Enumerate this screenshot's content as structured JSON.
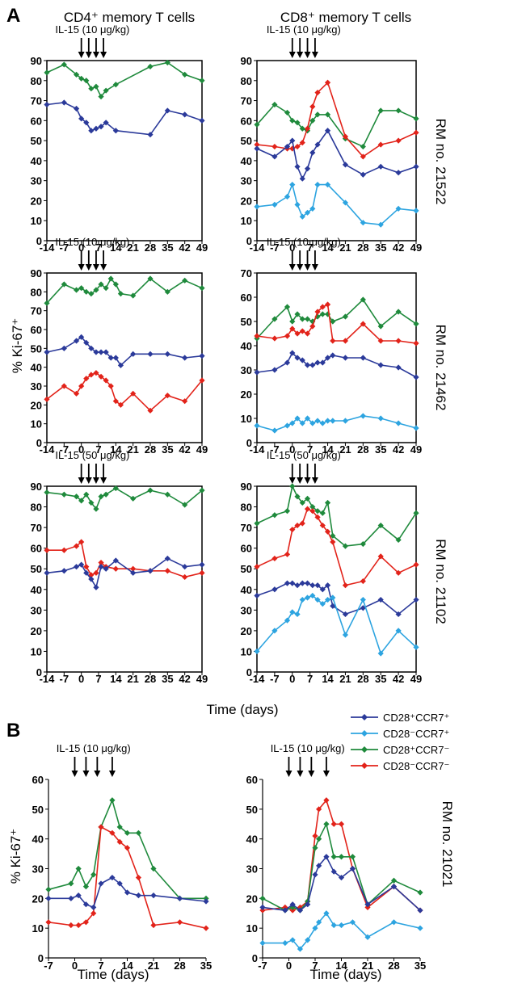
{
  "figure": {
    "panel_a_letter": "A",
    "panel_b_letter": "B",
    "col_cd4_title": "CD4⁺ memory T cells",
    "col_cd8_title": "CD8⁺ memory T cells",
    "ylabel": "% Ki-67⁺",
    "xlabel": "Time (days)",
    "rm_21522": "RM no. 21522",
    "rm_21462": "RM no. 21462",
    "rm_21102": "RM no. 21102",
    "rm_21021": "RM no. 21021"
  },
  "colors": {
    "CD28+CCR7+": "#2b3a9a",
    "CD28-CCR7+": "#2da4e0",
    "CD28+CCR7-": "#1f8a3c",
    "CD28-CCR7-": "#e2231a"
  },
  "legend": [
    {
      "key": "CD28+CCR7+",
      "label": "CD28⁺CCR7⁺"
    },
    {
      "key": "CD28-CCR7+",
      "label": "CD28⁻CCR7⁺"
    },
    {
      "key": "CD28+CCR7-",
      "label": "CD28⁺CCR7⁻"
    },
    {
      "key": "CD28-CCR7-",
      "label": "CD28⁻CCR7⁻"
    }
  ],
  "chart_data": [
    {
      "id": "a_cd4_21522",
      "type": "line",
      "treatment_label": "IL-15 (10 μg/kg)",
      "arrow_days": [
        0,
        3,
        6,
        9
      ],
      "ylim": [
        0,
        90
      ],
      "yticks": [
        0,
        10,
        20,
        30,
        40,
        50,
        60,
        70,
        80,
        90
      ],
      "xlim": [
        -14,
        49
      ],
      "xticks": [
        -14,
        -7,
        0,
        7,
        14,
        21,
        28,
        35,
        42,
        49
      ],
      "xtick_labels": [
        "-14",
        "-7",
        "0",
        "7",
        "14",
        "21",
        "28",
        "35",
        "42",
        "49"
      ],
      "x": [
        -14,
        -7,
        -2,
        0,
        2,
        4,
        6,
        8,
        10,
        14,
        28,
        35,
        42,
        49
      ],
      "series": [
        {
          "key": "CD28+CCR7-",
          "values": [
            84,
            88,
            83,
            81,
            80,
            76,
            77,
            72,
            75,
            78,
            87,
            89,
            83,
            80
          ]
        },
        {
          "key": "CD28+CCR7+",
          "values": [
            68,
            69,
            66,
            61,
            59,
            55,
            56,
            57,
            59,
            55,
            53,
            65,
            63,
            60
          ]
        }
      ]
    },
    {
      "id": "a_cd8_21522",
      "type": "line",
      "treatment_label": "IL-15 (10 μg/kg)",
      "arrow_days": [
        0,
        3,
        6,
        9
      ],
      "ylim": [
        0,
        90
      ],
      "yticks": [
        0,
        10,
        20,
        30,
        40,
        50,
        60,
        70,
        80,
        90
      ],
      "xlim": [
        -14,
        49
      ],
      "xticks": [
        -14,
        -7,
        0,
        7,
        14,
        21,
        28,
        35,
        42,
        49
      ],
      "xtick_labels": [
        "-14",
        "-7",
        "0",
        "7",
        "14",
        "21",
        "28",
        "35",
        "42",
        "49"
      ],
      "x": [
        -14,
        -7,
        -2,
        0,
        2,
        4,
        6,
        8,
        10,
        14,
        21,
        28,
        35,
        42,
        49
      ],
      "series": [
        {
          "key": "CD28+CCR7-",
          "values": [
            58,
            68,
            64,
            60,
            59,
            56,
            55,
            60,
            63,
            63,
            51,
            47,
            65,
            65,
            61
          ]
        },
        {
          "key": "CD28-CCR7-",
          "values": [
            48,
            47,
            46,
            46,
            47,
            49,
            56,
            67,
            74,
            79,
            52,
            42,
            48,
            50,
            54
          ]
        },
        {
          "key": "CD28+CCR7+",
          "values": [
            46,
            42,
            47,
            50,
            37,
            31,
            36,
            44,
            48,
            55,
            38,
            33,
            37,
            34,
            37
          ]
        },
        {
          "key": "CD28-CCR7+",
          "values": [
            17,
            18,
            22,
            28,
            18,
            12,
            14,
            16,
            28,
            28,
            19,
            9,
            8,
            16,
            15
          ]
        }
      ]
    },
    {
      "id": "a_cd4_21462",
      "type": "line",
      "treatment_label": "IL-15 (10 μg/kg)",
      "arrow_days": [
        0,
        3,
        6,
        9
      ],
      "ylim": [
        0,
        90
      ],
      "yticks": [
        0,
        10,
        20,
        30,
        40,
        50,
        60,
        70,
        80,
        90
      ],
      "xlim": [
        -14,
        49
      ],
      "xticks": [
        -14,
        -7,
        0,
        7,
        14,
        21,
        28,
        35,
        42,
        49
      ],
      "xtick_labels": [
        "-14",
        "-7",
        "0",
        "7",
        "14",
        "21",
        "28",
        "35",
        "42",
        "49"
      ],
      "x": [
        -14,
        -7,
        -2,
        0,
        2,
        4,
        6,
        8,
        10,
        12,
        14,
        16,
        21,
        28,
        35,
        42,
        49
      ],
      "series": [
        {
          "key": "CD28+CCR7-",
          "values": [
            74,
            84,
            81,
            82,
            80,
            79,
            81,
            84,
            82,
            87,
            84,
            79,
            78,
            87,
            80,
            86,
            82
          ]
        },
        {
          "key": "CD28+CCR7+",
          "values": [
            48,
            50,
            54,
            56,
            53,
            50,
            48,
            48,
            48,
            45,
            45,
            41,
            47,
            47,
            47,
            45,
            46
          ]
        },
        {
          "key": "CD28-CCR7-",
          "values": [
            23,
            30,
            26,
            30,
            34,
            36,
            37,
            35,
            33,
            30,
            22,
            20,
            26,
            17,
            25,
            22,
            33
          ]
        }
      ]
    },
    {
      "id": "a_cd8_21462",
      "type": "line",
      "treatment_label": "IL-15 (10 μg/kg)",
      "arrow_days": [
        0,
        3,
        6,
        9
      ],
      "ylim": [
        0,
        70
      ],
      "yticks": [
        0,
        10,
        20,
        30,
        40,
        50,
        60,
        70
      ],
      "xlim": [
        -14,
        49
      ],
      "xticks": [
        -14,
        -7,
        0,
        7,
        14,
        21,
        28,
        35,
        42,
        49
      ],
      "xtick_labels": [
        "-14",
        "-7",
        "0",
        "7",
        "14",
        "21",
        "28",
        "35",
        "42",
        "49"
      ],
      "x": [
        -14,
        -7,
        -2,
        0,
        2,
        4,
        6,
        8,
        10,
        12,
        14,
        16,
        21,
        28,
        35,
        42,
        49
      ],
      "series": [
        {
          "key": "CD28+CCR7-",
          "values": [
            43,
            51,
            56,
            50,
            53,
            51,
            51,
            50,
            52,
            53,
            53,
            50,
            52,
            59,
            48,
            54,
            49
          ]
        },
        {
          "key": "CD28-CCR7-",
          "values": [
            44,
            43,
            44,
            47,
            45,
            46,
            45,
            48,
            54,
            56,
            57,
            42,
            42,
            49,
            42,
            42,
            41
          ]
        },
        {
          "key": "CD28+CCR7+",
          "values": [
            29,
            30,
            33,
            37,
            35,
            34,
            32,
            32,
            33,
            33,
            35,
            36,
            35,
            35,
            32,
            31,
            27
          ]
        },
        {
          "key": "CD28-CCR7+",
          "values": [
            7,
            5,
            7,
            8,
            10,
            8,
            10,
            8,
            9,
            8,
            9,
            9,
            9,
            11,
            10,
            8,
            6
          ]
        }
      ]
    },
    {
      "id": "a_cd4_21102",
      "type": "line",
      "treatment_label": "IL-15 (50 μg/kg)",
      "arrow_days": [
        0,
        3,
        6,
        9
      ],
      "ylim": [
        0,
        90
      ],
      "yticks": [
        0,
        10,
        20,
        30,
        40,
        50,
        60,
        70,
        80,
        90
      ],
      "xlim": [
        -14,
        49
      ],
      "xticks": [
        -14,
        -7,
        0,
        7,
        14,
        21,
        28,
        35,
        42,
        49
      ],
      "xtick_labels": [
        "-14",
        "-7",
        "0",
        "7",
        "14",
        "21",
        "28",
        "35",
        "42",
        "49"
      ],
      "x": [
        -14,
        -7,
        -2,
        0,
        2,
        4,
        6,
        8,
        10,
        14,
        21,
        28,
        35,
        42,
        49
      ],
      "series": [
        {
          "key": "CD28+CCR7-",
          "values": [
            87,
            86,
            85,
            83,
            86,
            82,
            79,
            85,
            86,
            89,
            84,
            88,
            86,
            81,
            88
          ]
        },
        {
          "key": "CD28-CCR7-",
          "values": [
            59,
            59,
            61,
            63,
            51,
            47,
            48,
            53,
            51,
            50,
            50,
            49,
            49,
            46,
            48
          ]
        },
        {
          "key": "CD28+CCR7+",
          "values": [
            48,
            49,
            51,
            52,
            48,
            45,
            41,
            51,
            50,
            54,
            48,
            49,
            55,
            51,
            52
          ]
        }
      ]
    },
    {
      "id": "a_cd8_21102",
      "type": "line",
      "treatment_label": "IL-15 (50 μg/kg)",
      "arrow_days": [
        0,
        3,
        6,
        9
      ],
      "ylim": [
        0,
        90
      ],
      "yticks": [
        0,
        10,
        20,
        30,
        40,
        50,
        60,
        70,
        80,
        90
      ],
      "xlim": [
        -14,
        49
      ],
      "xticks": [
        -14,
        -7,
        0,
        7,
        14,
        21,
        28,
        35,
        42,
        49
      ],
      "xtick_labels": [
        "-14",
        "-7",
        "0",
        "7",
        "14",
        "21",
        "28",
        "35",
        "42",
        "49"
      ],
      "x": [
        -14,
        -7,
        -2,
        0,
        2,
        4,
        6,
        8,
        10,
        12,
        14,
        16,
        21,
        28,
        35,
        42,
        49
      ],
      "series": [
        {
          "key": "CD28+CCR7-",
          "values": [
            72,
            76,
            78,
            90,
            85,
            82,
            84,
            80,
            78,
            77,
            82,
            66,
            61,
            62,
            71,
            64,
            77
          ]
        },
        {
          "key": "CD28-CCR7-",
          "values": [
            51,
            55,
            57,
            69,
            71,
            72,
            79,
            78,
            75,
            71,
            68,
            63,
            42,
            44,
            56,
            48,
            52
          ]
        },
        {
          "key": "CD28+CCR7+",
          "values": [
            37,
            40,
            43,
            43,
            42,
            43,
            43,
            42,
            42,
            40,
            42,
            32,
            28,
            31,
            35,
            28,
            35
          ]
        },
        {
          "key": "CD28-CCR7+",
          "values": [
            10,
            20,
            25,
            29,
            28,
            35,
            36,
            37,
            35,
            33,
            35,
            36,
            18,
            35,
            9,
            20,
            12
          ]
        }
      ]
    },
    {
      "id": "b_cd4_21021",
      "type": "line",
      "treatment_label": "IL-15 (10 μg/kg)",
      "arrow_days": [
        0,
        3,
        6,
        10
      ],
      "ylim": [
        0,
        60
      ],
      "yticks": [
        0,
        10,
        20,
        30,
        40,
        50,
        60
      ],
      "xlim": [
        -7,
        35
      ],
      "xticks": [
        -7,
        0,
        7,
        14,
        21,
        28,
        35
      ],
      "xtick_labels": [
        "-7",
        "0",
        "7",
        "14",
        "21",
        "28",
        "35"
      ],
      "x": [
        -7,
        -1,
        1,
        3,
        5,
        7,
        10,
        12,
        14,
        17,
        21,
        28,
        35
      ],
      "series": [
        {
          "key": "CD28+CCR7-",
          "values": [
            23,
            25,
            30,
            24,
            28,
            44,
            53,
            44,
            42,
            42,
            30,
            20,
            20
          ]
        },
        {
          "key": "CD28-CCR7-",
          "values": [
            12,
            11,
            11,
            12,
            15,
            44,
            42,
            39,
            37,
            27,
            11,
            12,
            10
          ]
        },
        {
          "key": "CD28+CCR7+",
          "values": [
            20,
            20,
            21,
            18,
            17,
            25,
            27,
            25,
            22,
            21,
            21,
            20,
            19
          ]
        }
      ]
    },
    {
      "id": "b_cd8_21021",
      "type": "line",
      "treatment_label": "IL-15 (10 μg/kg)",
      "arrow_days": [
        0,
        3,
        6,
        10
      ],
      "ylim": [
        0,
        60
      ],
      "yticks": [
        0,
        10,
        20,
        30,
        40,
        50,
        60
      ],
      "xlim": [
        -7,
        35
      ],
      "xticks": [
        -7,
        0,
        7,
        14,
        21,
        28,
        35
      ],
      "xtick_labels": [
        "-7",
        "0",
        "7",
        "14",
        "21",
        "28",
        "35"
      ],
      "x": [
        -7,
        -1,
        1,
        3,
        5,
        7,
        8,
        10,
        12,
        14,
        17,
        21,
        28,
        35
      ],
      "series": [
        {
          "key": "CD28-CCR7-",
          "values": [
            16,
            17,
            16,
            17,
            19,
            41,
            50,
            53,
            45,
            45,
            30,
            17,
            24,
            16
          ]
        },
        {
          "key": "CD28+CCR7-",
          "values": [
            20,
            16,
            17,
            16,
            19,
            37,
            40,
            45,
            34,
            34,
            34,
            18,
            26,
            22
          ]
        },
        {
          "key": "CD28+CCR7+",
          "values": [
            17,
            16,
            18,
            16,
            18,
            28,
            31,
            34,
            29,
            27,
            30,
            18,
            24,
            16
          ]
        },
        {
          "key": "CD28-CCR7+",
          "values": [
            5,
            5,
            6,
            3,
            6,
            10,
            12,
            15,
            11,
            11,
            12,
            7,
            12,
            10
          ]
        }
      ]
    }
  ]
}
